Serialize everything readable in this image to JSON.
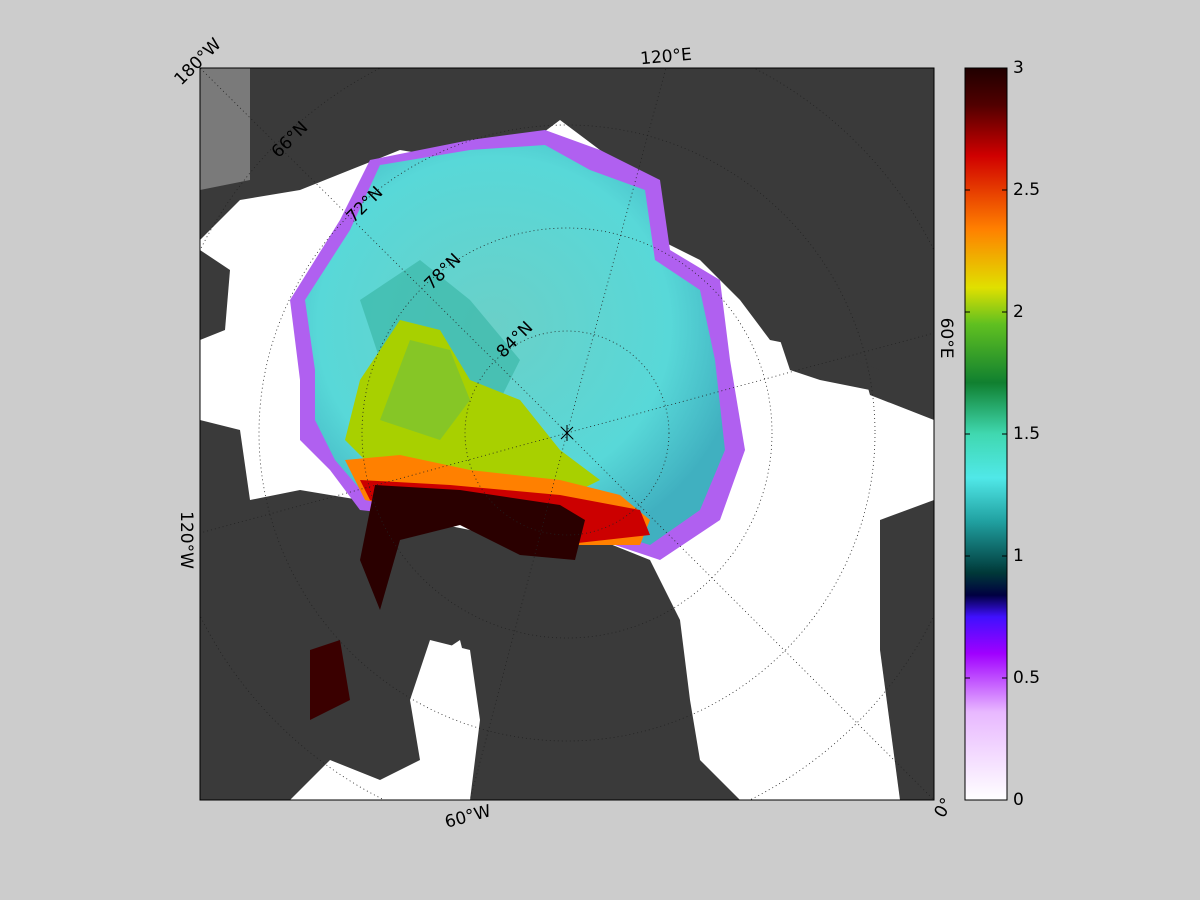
{
  "map": {
    "meridian_labels": [
      "180°W",
      "120°E",
      "60°E",
      "0°",
      "60°W",
      "120°W"
    ],
    "parallel_labels": [
      "66°N",
      "72°N",
      "78°N",
      "84°N"
    ]
  },
  "colorbar": {
    "lim": [
      0,
      3
    ],
    "ticks": [
      0,
      0.5,
      1,
      1.5,
      2,
      2.5,
      3
    ]
  }
}
